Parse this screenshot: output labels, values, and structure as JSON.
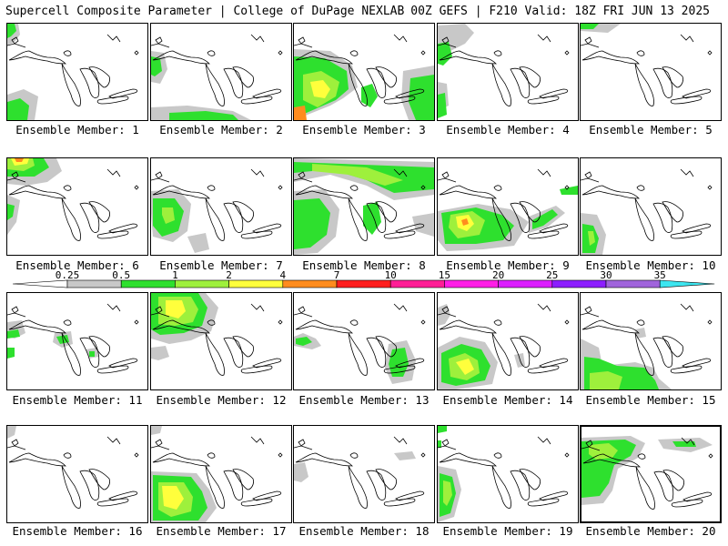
{
  "header": {
    "left": "Supercell Composite Parameter | College of DuPage NEXLAB",
    "right": "00Z GEFS | F210 Valid: 18Z FRI JUN 13 2025"
  },
  "members": [
    {
      "label": "Ensemble Member: 1"
    },
    {
      "label": "Ensemble Member: 2"
    },
    {
      "label": "Ensemble Member: 3"
    },
    {
      "label": "Ensemble Member: 4"
    },
    {
      "label": "Ensemble Member: 5"
    },
    {
      "label": "Ensemble Member: 6"
    },
    {
      "label": "Ensemble Member: 7"
    },
    {
      "label": "Ensemble Member: 8"
    },
    {
      "label": "Ensemble Member: 9"
    },
    {
      "label": "Ensemble Member: 10"
    },
    {
      "label": "Ensemble Member: 11"
    },
    {
      "label": "Ensemble Member: 12"
    },
    {
      "label": "Ensemble Member: 13"
    },
    {
      "label": "Ensemble Member: 14"
    },
    {
      "label": "Ensemble Member: 15"
    },
    {
      "label": "Ensemble Member: 16"
    },
    {
      "label": "Ensemble Member: 17"
    },
    {
      "label": "Ensemble Member: 18"
    },
    {
      "label": "Ensemble Member: 19"
    },
    {
      "label": "Ensemble Member: 20",
      "selected": true
    }
  ],
  "colorbar": {
    "ticks": [
      "0.25",
      "0.5",
      "1",
      "2",
      "4",
      "7",
      "10",
      "15",
      "20",
      "25",
      "30",
      "35"
    ],
    "colors": [
      "#c8c8c8",
      "#2ee02e",
      "#9ef03c",
      "#ffff3c",
      "#ff8c1e",
      "#ff1e1e",
      "#ff1e96",
      "#ff1ee6",
      "#dc1eff",
      "#8c1eff",
      "#a064dc",
      "#3ce6f0"
    ]
  }
}
